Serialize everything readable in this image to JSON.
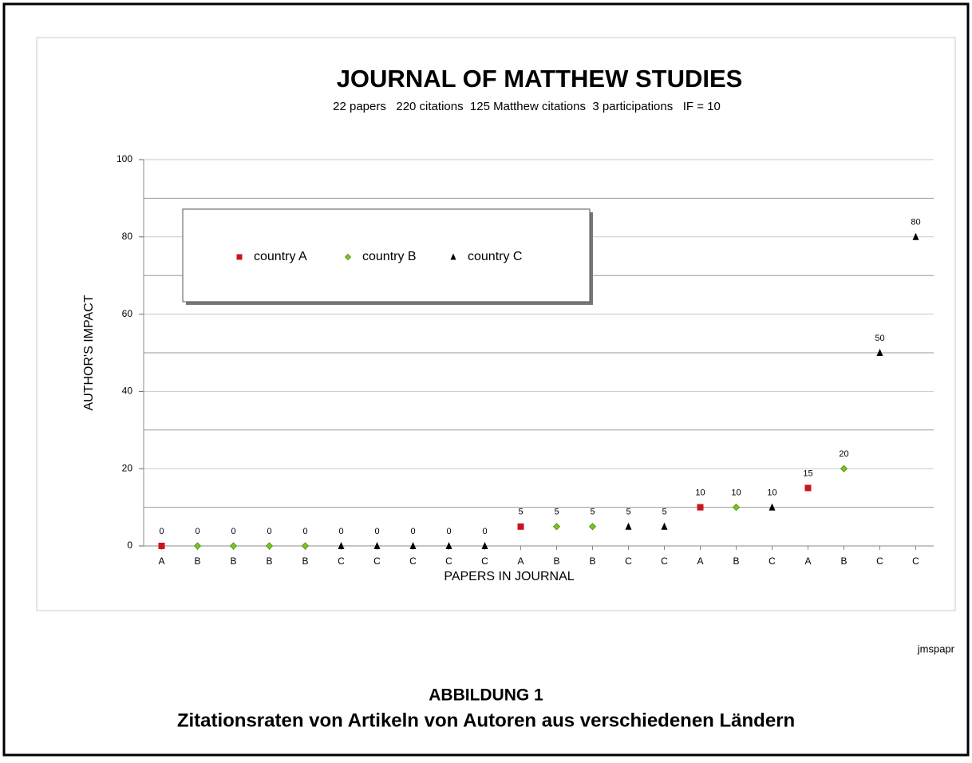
{
  "chart_data": {
    "type": "dot",
    "title": "JOURNAL OF MATTHEW STUDIES",
    "subtitle": "22 papers   220 citations  125 Matthew citations  3 participations   IF = 10",
    "x_label": "PAPERS IN JOURNAL",
    "y_label": "AUTHOR'S IMPACT",
    "categories": [
      "A",
      "B",
      "B",
      "B",
      "B",
      "C",
      "C",
      "C",
      "C",
      "C",
      "A",
      "B",
      "B",
      "C",
      "C",
      "A",
      "B",
      "C",
      "A",
      "B",
      "C",
      "C"
    ],
    "series": [
      {
        "name": "country A",
        "color": "#c8141e",
        "marker": "square",
        "values": [
          0,
          null,
          null,
          null,
          null,
          null,
          null,
          null,
          null,
          null,
          5,
          null,
          null,
          null,
          null,
          10,
          null,
          null,
          15,
          null,
          null,
          null
        ]
      },
      {
        "name": "country B",
        "color": "#7cc420",
        "marker": "diamond",
        "values": [
          null,
          0,
          0,
          0,
          0,
          null,
          null,
          null,
          null,
          null,
          null,
          5,
          5,
          null,
          null,
          null,
          10,
          null,
          null,
          20,
          null,
          null
        ]
      },
      {
        "name": "country C",
        "color": "#000000",
        "marker": "triangle",
        "values": [
          null,
          null,
          null,
          null,
          null,
          0,
          0,
          0,
          0,
          0,
          null,
          null,
          null,
          5,
          5,
          null,
          null,
          10,
          null,
          null,
          50,
          80
        ]
      }
    ],
    "ylim": [
      0,
      100
    ],
    "yticks": [
      0,
      20,
      40,
      60,
      80,
      100
    ],
    "minor_yticks": [
      10,
      30,
      50,
      70,
      90
    ],
    "grid": true,
    "legend": "upper left",
    "data_labels": true
  },
  "figure": {
    "credit": "jmspapr",
    "label": "ABBILDUNG 1",
    "caption": "Zitationsraten von Artikeln von Autoren aus verschiedenen Ländern"
  }
}
